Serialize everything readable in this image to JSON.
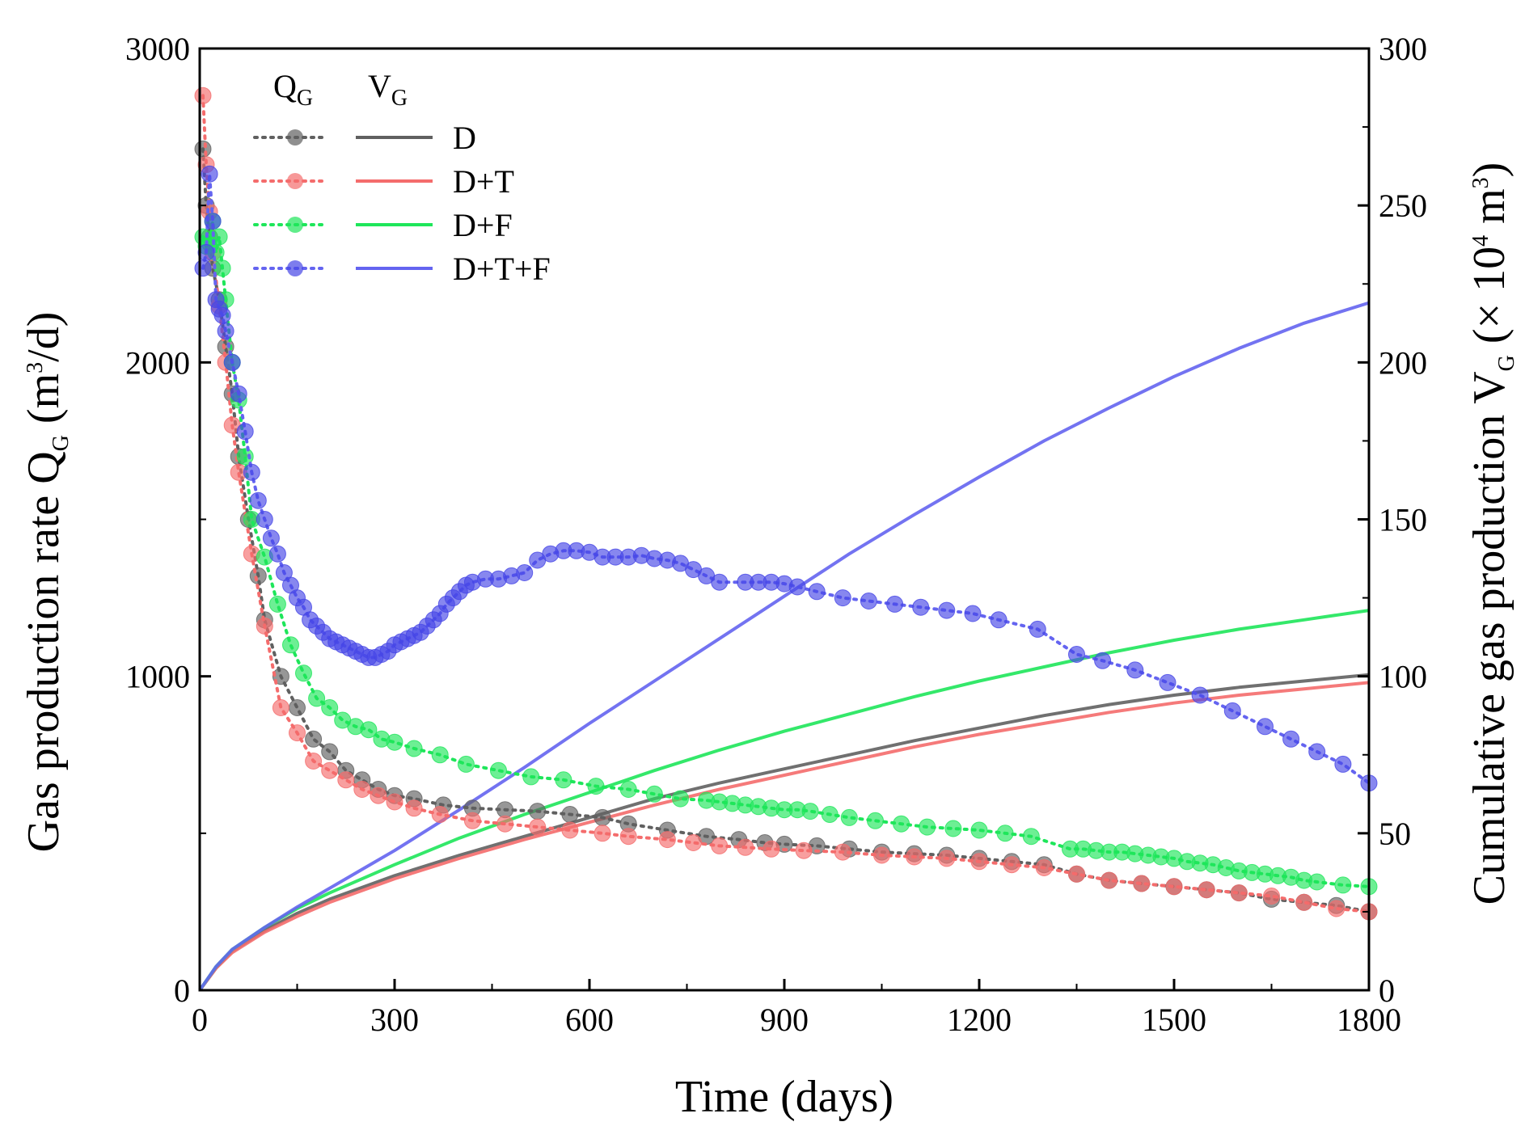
{
  "chart_data": {
    "type": "line",
    "title": "",
    "xlabel": "Time (days)",
    "ylabel_left": {
      "main": "Gas production rate Q",
      "sub": "G",
      "unit_pre": " (m",
      "unit_sup": "3",
      "unit_post": "/d)"
    },
    "ylabel_right": {
      "main": "Cumulative gas production V",
      "sub": "G",
      "unit_pre": " (× 10",
      "unit_sup": "4",
      "unit_mid": " m",
      "unit_sup2": "3",
      "unit_post": ")"
    },
    "xlim": [
      0,
      1800
    ],
    "ylim_left": [
      0,
      3000
    ],
    "ylim_right": [
      0,
      300
    ],
    "x_ticks": [
      "0",
      "300",
      "600",
      "900",
      "1200",
      "1500",
      "1800"
    ],
    "y_ticks_left": [
      "0",
      "1000",
      "2000",
      "3000"
    ],
    "y_ticks_right": [
      "0",
      "50",
      "100",
      "150",
      "200",
      "250",
      "300"
    ],
    "legend": {
      "position": "top-left",
      "header_q": {
        "main": "Q",
        "sub": "G"
      },
      "header_v": {
        "main": "V",
        "sub": "G"
      },
      "entries": [
        "D",
        "D+T",
        "D+F",
        "D+T+F"
      ]
    },
    "colors": {
      "D": "#606060",
      "D+T": "#f46c6c",
      "D+F": "#1ee65a",
      "D+T+F": "#6464f0",
      "D+T+F-marker": "#4646e6"
    },
    "series_rate": [
      {
        "name": "D",
        "axis": "left",
        "x": [
          5,
          10,
          15,
          20,
          30,
          40,
          50,
          60,
          75,
          90,
          100,
          125,
          150,
          175,
          200,
          225,
          250,
          275,
          300,
          330,
          375,
          420,
          470,
          520,
          570,
          620,
          660,
          720,
          780,
          830,
          870,
          900,
          950,
          1000,
          1050,
          1100,
          1150,
          1200,
          1250,
          1300,
          1350,
          1400,
          1450,
          1500,
          1550,
          1600,
          1650,
          1700,
          1750,
          1800
        ],
        "y": [
          2680,
          2500,
          2400,
          2300,
          2200,
          2050,
          1900,
          1700,
          1500,
          1320,
          1180,
          1000,
          900,
          800,
          760,
          700,
          670,
          640,
          620,
          610,
          590,
          580,
          575,
          570,
          560,
          550,
          530,
          510,
          490,
          480,
          470,
          465,
          460,
          450,
          440,
          435,
          430,
          420,
          410,
          400,
          370,
          350,
          340,
          330,
          320,
          310,
          290,
          280,
          270,
          250
        ]
      },
      {
        "name": "D+T",
        "axis": "left",
        "x": [
          5,
          10,
          15,
          20,
          30,
          40,
          50,
          60,
          80,
          100,
          125,
          150,
          175,
          200,
          225,
          250,
          275,
          300,
          330,
          370,
          420,
          470,
          520,
          570,
          620,
          660,
          720,
          760,
          800,
          840,
          880,
          930,
          990,
          1050,
          1100,
          1150,
          1200,
          1250,
          1300,
          1350,
          1400,
          1450,
          1500,
          1550,
          1600,
          1650,
          1700,
          1750,
          1800
        ],
        "y": [
          2850,
          2630,
          2480,
          2350,
          2180,
          2000,
          1800,
          1650,
          1390,
          1160,
          900,
          820,
          730,
          700,
          670,
          640,
          620,
          600,
          580,
          560,
          540,
          530,
          520,
          510,
          500,
          490,
          480,
          470,
          460,
          455,
          450,
          445,
          440,
          430,
          425,
          420,
          410,
          400,
          390,
          370,
          350,
          340,
          330,
          320,
          310,
          300,
          280,
          260,
          250
        ]
      },
      {
        "name": "D+F",
        "axis": "left",
        "x": [
          5,
          10,
          15,
          20,
          25,
          30,
          35,
          40,
          50,
          60,
          70,
          80,
          100,
          120,
          140,
          160,
          180,
          200,
          220,
          240,
          260,
          280,
          300,
          330,
          370,
          410,
          460,
          510,
          560,
          610,
          660,
          700,
          740,
          780,
          800,
          820,
          840,
          860,
          880,
          900,
          920,
          940,
          970,
          1000,
          1040,
          1080,
          1120,
          1160,
          1200,
          1240,
          1280,
          1340,
          1360,
          1380,
          1400,
          1420,
          1440,
          1460,
          1480,
          1500,
          1520,
          1540,
          1560,
          1580,
          1600,
          1620,
          1640,
          1660,
          1680,
          1700,
          1720,
          1760,
          1800
        ],
        "y": [
          2400,
          2370,
          2380,
          2450,
          2350,
          2400,
          2300,
          2200,
          2000,
          1880,
          1700,
          1500,
          1380,
          1230,
          1100,
          1010,
          930,
          900,
          860,
          840,
          830,
          800,
          790,
          770,
          750,
          720,
          700,
          680,
          670,
          650,
          640,
          625,
          610,
          605,
          600,
          595,
          590,
          585,
          580,
          575,
          575,
          570,
          560,
          550,
          540,
          530,
          520,
          515,
          510,
          500,
          490,
          450,
          450,
          445,
          440,
          440,
          435,
          430,
          425,
          420,
          410,
          405,
          400,
          390,
          380,
          375,
          370,
          365,
          360,
          350,
          345,
          335,
          330
        ]
      },
      {
        "name": "D+T+F",
        "axis": "left",
        "x": [
          5,
          10,
          15,
          20,
          25,
          30,
          35,
          40,
          50,
          60,
          70,
          80,
          90,
          100,
          110,
          120,
          130,
          140,
          150,
          160,
          170,
          180,
          190,
          200,
          210,
          220,
          230,
          240,
          250,
          260,
          270,
          280,
          290,
          300,
          310,
          320,
          330,
          340,
          350,
          360,
          370,
          380,
          390,
          400,
          410,
          420,
          440,
          460,
          480,
          500,
          520,
          540,
          560,
          580,
          600,
          620,
          640,
          660,
          680,
          700,
          720,
          740,
          760,
          780,
          800,
          840,
          860,
          880,
          900,
          920,
          950,
          990,
          1030,
          1070,
          1110,
          1150,
          1190,
          1230,
          1290,
          1350,
          1390,
          1440,
          1490,
          1540,
          1590,
          1640,
          1680,
          1720,
          1760,
          1800
        ],
        "y": [
          2300,
          2350,
          2600,
          2450,
          2200,
          2170,
          2150,
          2100,
          2000,
          1900,
          1780,
          1650,
          1560,
          1500,
          1440,
          1390,
          1330,
          1290,
          1250,
          1220,
          1180,
          1160,
          1140,
          1120,
          1110,
          1100,
          1090,
          1080,
          1070,
          1060,
          1060,
          1070,
          1080,
          1100,
          1110,
          1120,
          1130,
          1140,
          1160,
          1180,
          1200,
          1230,
          1250,
          1270,
          1290,
          1300,
          1310,
          1310,
          1320,
          1330,
          1370,
          1390,
          1400,
          1400,
          1395,
          1380,
          1380,
          1380,
          1385,
          1375,
          1370,
          1360,
          1340,
          1320,
          1300,
          1300,
          1300,
          1300,
          1295,
          1285,
          1270,
          1250,
          1240,
          1230,
          1220,
          1210,
          1200,
          1180,
          1150,
          1070,
          1050,
          1020,
          980,
          940,
          890,
          840,
          800,
          760,
          720,
          660
        ]
      }
    ],
    "series_cumulative": [
      {
        "name": "D",
        "axis": "right",
        "x": [
          0,
          25,
          50,
          100,
          150,
          200,
          300,
          400,
          500,
          600,
          700,
          800,
          900,
          1000,
          1100,
          1200,
          1300,
          1400,
          1500,
          1600,
          1700,
          1800
        ],
        "y": [
          0,
          7,
          12.5,
          19,
          24.5,
          29,
          36.5,
          43,
          49,
          55,
          61,
          66,
          70.5,
          75,
          79.5,
          83.5,
          87.5,
          91,
          94,
          96.5,
          98.5,
          100.5
        ]
      },
      {
        "name": "D+T",
        "axis": "right",
        "x": [
          0,
          25,
          50,
          100,
          150,
          200,
          300,
          400,
          500,
          600,
          700,
          800,
          900,
          1000,
          1100,
          1200,
          1300,
          1400,
          1500,
          1600,
          1700,
          1800
        ],
        "y": [
          0,
          7,
          12,
          18.5,
          23.5,
          28,
          35.5,
          42,
          48,
          53.5,
          59,
          64,
          68.5,
          73,
          77.5,
          81.5,
          85,
          88.5,
          91.5,
          94,
          96,
          98
        ]
      },
      {
        "name": "D+F",
        "axis": "right",
        "x": [
          0,
          25,
          50,
          100,
          150,
          200,
          300,
          400,
          500,
          600,
          700,
          800,
          900,
          1000,
          1100,
          1200,
          1300,
          1400,
          1500,
          1600,
          1700,
          1800
        ],
        "y": [
          0,
          7.5,
          13,
          20,
          26,
          31,
          40,
          48.5,
          56,
          63,
          70,
          76.5,
          82.5,
          88,
          93.5,
          98.5,
          103,
          107.5,
          111.5,
          115,
          118,
          121
        ]
      },
      {
        "name": "D+T+F",
        "axis": "right",
        "x": [
          0,
          25,
          50,
          100,
          150,
          200,
          250,
          300,
          400,
          500,
          600,
          700,
          800,
          900,
          1000,
          1100,
          1200,
          1300,
          1400,
          1500,
          1600,
          1700,
          1800
        ],
        "y": [
          0,
          7.5,
          13,
          20,
          26.5,
          32.5,
          38.5,
          44.5,
          57.5,
          71,
          85,
          98.5,
          112,
          125.5,
          139,
          151.5,
          163.5,
          175,
          185.5,
          195.5,
          204.5,
          212.5,
          219
        ]
      }
    ]
  }
}
